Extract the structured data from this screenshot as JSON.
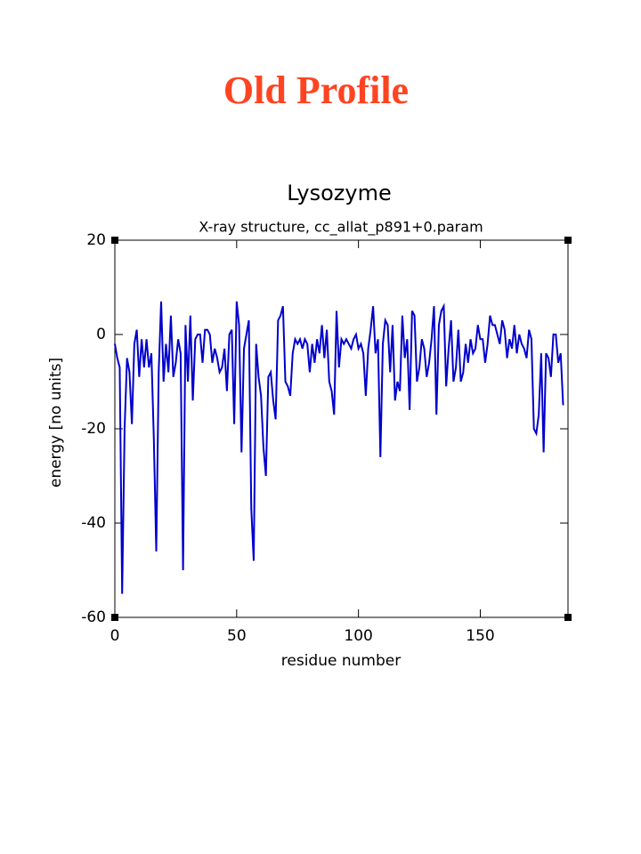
{
  "page_title": "Old Profile",
  "chart_data": {
    "type": "line",
    "title": "Lysozyme",
    "subtitle": "X-ray structure, cc_allat_p891+0.param",
    "x_label": "residue number",
    "y_label": "energy [no units]",
    "x": [
      0,
      1,
      2,
      3,
      4,
      5,
      6,
      7,
      8,
      9,
      10,
      11,
      12,
      13,
      14,
      15,
      16,
      17,
      18,
      19,
      20,
      21,
      22,
      23,
      24,
      25,
      26,
      27,
      28,
      29,
      30,
      31,
      32,
      33,
      34,
      35,
      36,
      37,
      38,
      39,
      40,
      41,
      42,
      43,
      44,
      45,
      46,
      47,
      48,
      49,
      50,
      51,
      52,
      53,
      54,
      55,
      56,
      57,
      58,
      59,
      60,
      61,
      62,
      63,
      64,
      65,
      66,
      67,
      68,
      69,
      70,
      71,
      72,
      73,
      74,
      75,
      76,
      77,
      78,
      79,
      80,
      81,
      82,
      83,
      84,
      85,
      86,
      87,
      88,
      89,
      90,
      91,
      92,
      93,
      94,
      95,
      96,
      97,
      98,
      99,
      100,
      101,
      102,
      103,
      104,
      105,
      106,
      107,
      108,
      109,
      110,
      111,
      112,
      113,
      114,
      115,
      116,
      117,
      118,
      119,
      120,
      121,
      122,
      123,
      124,
      125,
      126,
      127,
      128,
      129,
      130,
      131,
      132,
      133,
      134,
      135,
      136,
      137,
      138,
      139,
      140,
      141,
      142,
      143,
      144,
      145,
      146,
      147,
      148,
      149,
      150,
      151,
      152,
      153,
      154,
      155,
      156,
      157,
      158,
      159,
      160,
      161,
      162,
      163,
      164,
      165,
      166,
      167,
      168,
      169,
      170,
      171,
      172,
      173,
      174,
      175,
      176,
      177,
      178,
      179,
      180,
      181,
      182,
      183,
      184
    ],
    "values": [
      -2,
      -5,
      -7,
      -55,
      -20,
      -5,
      -8,
      -19,
      -2,
      1,
      -9,
      -1,
      -7,
      -1,
      -7,
      -4,
      -22,
      -46,
      -8,
      7,
      -10,
      -2,
      -8,
      4,
      -9,
      -6,
      -1,
      -4,
      -50,
      2,
      -10,
      4,
      -14,
      -1,
      0,
      0,
      -6,
      1,
      1,
      0,
      -6,
      -3,
      -5,
      -8,
      -7,
      -3,
      -12,
      0,
      1,
      -19,
      7,
      2,
      -25,
      -3,
      0,
      3,
      -37,
      -48,
      -2,
      -9,
      -13,
      -24,
      -30,
      -9,
      -8,
      -14,
      -18,
      3,
      4,
      6,
      -10,
      -11,
      -13,
      -4,
      -1,
      -2,
      -1,
      -3,
      -1,
      -2,
      -8,
      -2,
      -6,
      -1,
      -4,
      2,
      -5,
      1,
      -10,
      -12,
      -17,
      5,
      -7,
      -1,
      -2,
      -1,
      -2,
      -3,
      -1,
      0,
      -3,
      -2,
      -4,
      -13,
      -3,
      1,
      6,
      -4,
      -1,
      -26,
      -2,
      3,
      2,
      -8,
      2,
      -14,
      -10,
      -12,
      4,
      -5,
      -1,
      -16,
      5,
      4,
      -10,
      -7,
      -1,
      -3,
      -9,
      -6,
      -1,
      6,
      -17,
      2,
      5,
      6,
      -11,
      -3,
      3,
      -10,
      -7,
      1,
      -10,
      -8,
      -2,
      -6,
      -1,
      -4,
      -3,
      2,
      -1,
      -1,
      -6,
      -2,
      4,
      2,
      2,
      0,
      -2,
      3,
      1,
      -5,
      -1,
      -3,
      2,
      -4,
      0,
      -2,
      -3,
      -5,
      1,
      -1,
      -20,
      -21,
      -17,
      -4,
      -25,
      -4,
      -5,
      -9,
      0,
      0,
      -6,
      -4,
      -15
    ],
    "color": "#0000cc",
    "xlim": [
      0,
      186
    ],
    "xticks": [
      0,
      50,
      100,
      150
    ],
    "ylim": [
      -60,
      20
    ],
    "yticks": [
      -60,
      -40,
      -20,
      0,
      20
    ]
  }
}
